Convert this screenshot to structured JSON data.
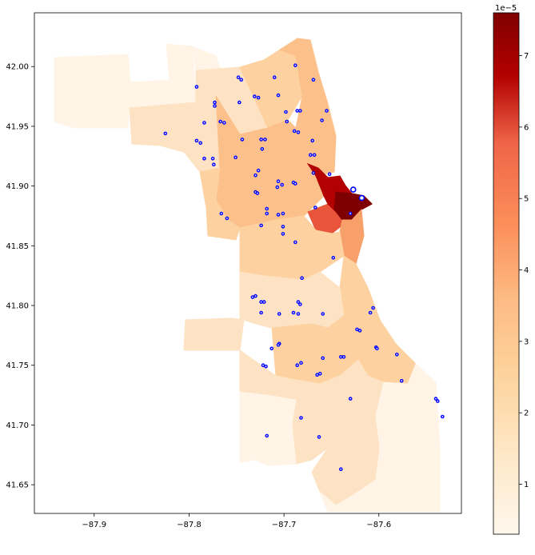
{
  "chart_data": {
    "type": "map",
    "x_ticks": [
      "−87.9",
      "−87.8",
      "−87.7",
      "−87.6"
    ],
    "y_ticks": [
      "41.65",
      "41.70",
      "41.75",
      "41.80",
      "41.85",
      "41.90",
      "41.95",
      "42.00"
    ],
    "xlim": [
      -87.963,
      -87.513
    ],
    "ylim": [
      41.626,
      42.045
    ],
    "colorbar": {
      "cmap": "OrRd",
      "range": [
        0.3,
        7.6
      ],
      "ticks": [
        "1",
        "2",
        "3",
        "4",
        "5",
        "6",
        "7"
      ],
      "exponent_label": "1e−5"
    },
    "colors": {
      "very_low": "#fff4e6",
      "low": "#fde3c4",
      "mid_low": "#fdd2a0",
      "mid": "#fcc08a",
      "mid_high": "#f7a069",
      "high": "#e8553b",
      "very_high": "#b30000",
      "max": "#7f0000",
      "marker_fill": "#ffffff",
      "marker_edge": "#0000ff"
    },
    "points": [
      {
        "lon": -87.792,
        "lat": 41.983
      },
      {
        "lon": -87.748,
        "lat": 41.991
      },
      {
        "lon": -87.745,
        "lat": 41.989
      },
      {
        "lon": -87.71,
        "lat": 41.991
      },
      {
        "lon": -87.688,
        "lat": 42.001
      },
      {
        "lon": -87.669,
        "lat": 41.989
      },
      {
        "lon": -87.773,
        "lat": 41.97
      },
      {
        "lon": -87.773,
        "lat": 41.967
      },
      {
        "lon": -87.747,
        "lat": 41.97
      },
      {
        "lon": -87.731,
        "lat": 41.975
      },
      {
        "lon": -87.727,
        "lat": 41.974
      },
      {
        "lon": -87.706,
        "lat": 41.976
      },
      {
        "lon": -87.698,
        "lat": 41.962
      },
      {
        "lon": -87.686,
        "lat": 41.963
      },
      {
        "lon": -87.683,
        "lat": 41.963
      },
      {
        "lon": -87.655,
        "lat": 41.963
      },
      {
        "lon": -87.784,
        "lat": 41.953
      },
      {
        "lon": -87.767,
        "lat": 41.954
      },
      {
        "lon": -87.763,
        "lat": 41.953
      },
      {
        "lon": -87.697,
        "lat": 41.954
      },
      {
        "lon": -87.66,
        "lat": 41.955
      },
      {
        "lon": -87.689,
        "lat": 41.946
      },
      {
        "lon": -87.685,
        "lat": 41.945
      },
      {
        "lon": -87.825,
        "lat": 41.944
      },
      {
        "lon": -87.792,
        "lat": 41.938
      },
      {
        "lon": -87.788,
        "lat": 41.936
      },
      {
        "lon": -87.744,
        "lat": 41.939
      },
      {
        "lon": -87.724,
        "lat": 41.939
      },
      {
        "lon": -87.72,
        "lat": 41.939
      },
      {
        "lon": -87.67,
        "lat": 41.938
      },
      {
        "lon": -87.723,
        "lat": 41.931
      },
      {
        "lon": -87.672,
        "lat": 41.926
      },
      {
        "lon": -87.668,
        "lat": 41.926
      },
      {
        "lon": -87.784,
        "lat": 41.923
      },
      {
        "lon": -87.775,
        "lat": 41.923
      },
      {
        "lon": -87.751,
        "lat": 41.924
      },
      {
        "lon": -87.774,
        "lat": 41.918
      },
      {
        "lon": -87.727,
        "lat": 41.913
      },
      {
        "lon": -87.73,
        "lat": 41.909
      },
      {
        "lon": -87.669,
        "lat": 41.911
      },
      {
        "lon": -87.652,
        "lat": 41.91
      },
      {
        "lon": -87.706,
        "lat": 41.904
      },
      {
        "lon": -87.702,
        "lat": 41.901
      },
      {
        "lon": -87.69,
        "lat": 41.903
      },
      {
        "lon": -87.688,
        "lat": 41.902
      },
      {
        "lon": -87.73,
        "lat": 41.895
      },
      {
        "lon": -87.728,
        "lat": 41.894
      },
      {
        "lon": -87.707,
        "lat": 41.899
      },
      {
        "lon": -87.627,
        "lat": 41.897
      },
      {
        "lon": -87.617,
        "lat": 41.89
      },
      {
        "lon": -87.618,
        "lat": 41.891
      },
      {
        "lon": -87.766,
        "lat": 41.877
      },
      {
        "lon": -87.718,
        "lat": 41.881
      },
      {
        "lon": -87.718,
        "lat": 41.877
      },
      {
        "lon": -87.706,
        "lat": 41.876
      },
      {
        "lon": -87.701,
        "lat": 41.877
      },
      {
        "lon": -87.63,
        "lat": 41.877
      },
      {
        "lon": -87.76,
        "lat": 41.873
      },
      {
        "lon": -87.667,
        "lat": 41.882
      },
      {
        "lon": -87.724,
        "lat": 41.867
      },
      {
        "lon": -87.701,
        "lat": 41.866
      },
      {
        "lon": -87.701,
        "lat": 41.86
      },
      {
        "lon": -87.688,
        "lat": 41.853
      },
      {
        "lon": -87.648,
        "lat": 41.84
      },
      {
        "lon": -87.681,
        "lat": 41.823
      },
      {
        "lon": -87.733,
        "lat": 41.807
      },
      {
        "lon": -87.73,
        "lat": 41.808
      },
      {
        "lon": -87.724,
        "lat": 41.803
      },
      {
        "lon": -87.721,
        "lat": 41.803
      },
      {
        "lon": -87.685,
        "lat": 41.803
      },
      {
        "lon": -87.683,
        "lat": 41.801
      },
      {
        "lon": -87.724,
        "lat": 41.794
      },
      {
        "lon": -87.705,
        "lat": 41.793
      },
      {
        "lon": -87.69,
        "lat": 41.794
      },
      {
        "lon": -87.685,
        "lat": 41.793
      },
      {
        "lon": -87.659,
        "lat": 41.793
      },
      {
        "lon": -87.609,
        "lat": 41.794
      },
      {
        "lon": -87.606,
        "lat": 41.798
      },
      {
        "lon": -87.623,
        "lat": 41.78
      },
      {
        "lon": -87.62,
        "lat": 41.779
      },
      {
        "lon": -87.705,
        "lat": 41.768
      },
      {
        "lon": -87.706,
        "lat": 41.767
      },
      {
        "lon": -87.713,
        "lat": 41.764
      },
      {
        "lon": -87.603,
        "lat": 41.765
      },
      {
        "lon": -87.602,
        "lat": 41.764
      },
      {
        "lon": -87.659,
        "lat": 41.756
      },
      {
        "lon": -87.64,
        "lat": 41.757
      },
      {
        "lon": -87.637,
        "lat": 41.757
      },
      {
        "lon": -87.581,
        "lat": 41.759
      },
      {
        "lon": -87.722,
        "lat": 41.75
      },
      {
        "lon": -87.719,
        "lat": 41.749
      },
      {
        "lon": -87.686,
        "lat": 41.75
      },
      {
        "lon": -87.682,
        "lat": 41.752
      },
      {
        "lon": -87.665,
        "lat": 41.742
      },
      {
        "lon": -87.662,
        "lat": 41.743
      },
      {
        "lon": -87.576,
        "lat": 41.737
      },
      {
        "lon": -87.63,
        "lat": 41.722
      },
      {
        "lon": -87.54,
        "lat": 41.722
      },
      {
        "lon": -87.538,
        "lat": 41.72
      },
      {
        "lon": -87.533,
        "lat": 41.707
      },
      {
        "lon": -87.682,
        "lat": 41.706
      },
      {
        "lon": -87.663,
        "lat": 41.69
      },
      {
        "lon": -87.718,
        "lat": 41.691
      },
      {
        "lon": -87.64,
        "lat": 41.663
      }
    ],
    "highlighted_points": [
      {
        "lon": -87.627,
        "lat": 41.897
      },
      {
        "lon": -87.618,
        "lat": 41.89
      }
    ]
  }
}
